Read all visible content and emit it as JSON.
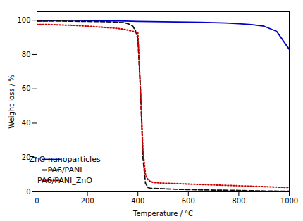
{
  "chart_data": {
    "type": "line",
    "xlabel": "Temperature / °C",
    "ylabel": "Weight loss / %",
    "xlim": [
      0,
      1000
    ],
    "ylim": [
      0,
      105
    ],
    "xticks": [
      0,
      200,
      400,
      600,
      800,
      1000
    ],
    "yticks": [
      0,
      20,
      40,
      60,
      80,
      100
    ],
    "grid": false,
    "legend": "lower left",
    "series": [
      {
        "name": "ZnO nanoparticles",
        "color": "#0000cc",
        "line_style": "solid",
        "x": [
          0,
          50,
          100,
          150,
          200,
          250,
          300,
          350,
          400,
          450,
          500,
          550,
          600,
          650,
          700,
          750,
          800,
          850,
          900,
          950,
          1000
        ],
        "values": [
          99.5,
          99.8,
          99.9,
          99.9,
          99.8,
          99.7,
          99.6,
          99.5,
          99.3,
          99.2,
          99.1,
          99.0,
          98.9,
          98.8,
          98.6,
          98.4,
          98.0,
          97.5,
          96.5,
          93.5,
          83.0
        ]
      },
      {
        "name": "PA6/PANI",
        "color": "#111111",
        "line_style": "dashed",
        "x": [
          0,
          50,
          100,
          150,
          200,
          250,
          300,
          350,
          360,
          370,
          380,
          390,
          400,
          410,
          420,
          430,
          440,
          450,
          500,
          550,
          600,
          700,
          800,
          900,
          1000
        ],
        "values": [
          99.5,
          99.5,
          99.5,
          99.4,
          99.3,
          99.2,
          99.0,
          98.5,
          98.0,
          97.5,
          96.5,
          94.0,
          89.0,
          60.0,
          20.0,
          5.0,
          2.5,
          2.0,
          1.8,
          1.5,
          1.3,
          1.0,
          0.8,
          0.5,
          0.3
        ]
      },
      {
        "name": "PA6/PANI_ZnO",
        "color": "#cc0000",
        "line_style": "dotted",
        "x": [
          0,
          50,
          100,
          150,
          200,
          250,
          300,
          320,
          340,
          360,
          380,
          390,
          400,
          410,
          420,
          430,
          440,
          450,
          460,
          500,
          550,
          600,
          700,
          800,
          900,
          1000
        ],
        "values": [
          97.5,
          97.5,
          97.2,
          97.0,
          96.5,
          96.0,
          95.5,
          95.2,
          94.8,
          94.2,
          93.5,
          93.0,
          92.5,
          60.0,
          25.0,
          10.0,
          7.0,
          6.0,
          5.5,
          5.0,
          4.8,
          4.5,
          4.0,
          3.5,
          3.0,
          2.5
        ]
      }
    ]
  }
}
